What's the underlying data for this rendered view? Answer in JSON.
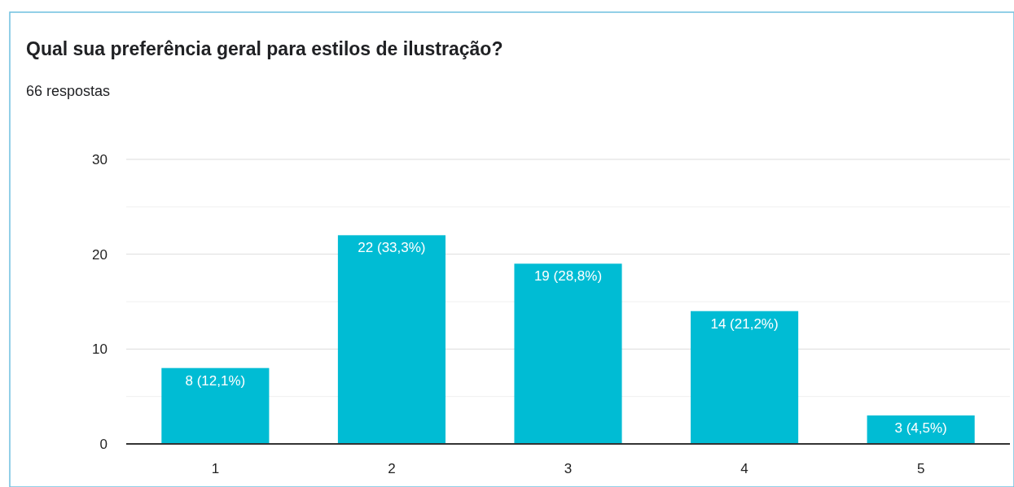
{
  "chart_data": {
    "type": "bar",
    "title": "Qual sua preferência geral para estilos de ilustração?",
    "subtitle": "66 respostas",
    "categories": [
      "1",
      "2",
      "3",
      "4",
      "5"
    ],
    "values": [
      8,
      22,
      19,
      14,
      3
    ],
    "value_labels": [
      "8 (12,1%)",
      "22 (33,3%)",
      "19 (28,8%)",
      "14 (21,2%)",
      "3 (4,5%)"
    ],
    "color": "#00bcd4",
    "ylim": [
      0,
      30
    ],
    "yticks": [
      0,
      {
        "value": 5,
        "label": null
      },
      10,
      {
        "value": 15,
        "label": null
      },
      20,
      {
        "value": 25,
        "label": null
      },
      30
    ],
    "grid": true
  }
}
